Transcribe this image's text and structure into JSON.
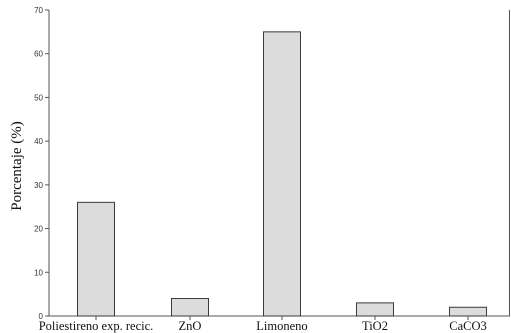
{
  "chart_data": {
    "type": "bar",
    "title": "",
    "xlabel": "",
    "ylabel": "Porcentaje (%)",
    "categories": [
      "Poliestireno exp. recic.",
      "ZnO",
      "Limoneno",
      "TiO2",
      "CaCO3"
    ],
    "values": [
      26,
      4,
      65,
      3,
      2
    ],
    "ylim": [
      0,
      70
    ],
    "yticks": [
      0,
      10,
      20,
      30,
      40,
      50,
      60,
      70
    ],
    "grid": false,
    "legend": "none",
    "colors": {
      "bar_fill": "#dcdcdc",
      "bar_stroke": "#3a3a3a",
      "axis": "#555555"
    }
  }
}
